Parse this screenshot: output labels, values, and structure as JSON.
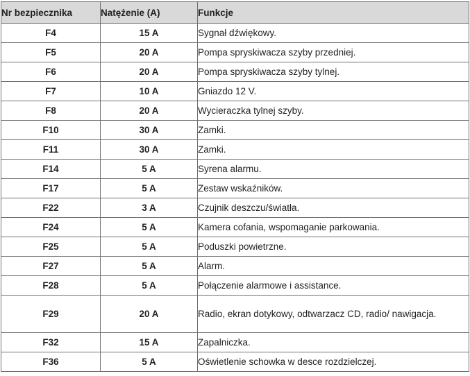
{
  "table": {
    "headers": [
      "Nr bezpiecznika",
      "Natężenie (A)",
      "Funkcje"
    ],
    "rows": [
      {
        "fuse": "F4",
        "amperage": "15 A",
        "function": "Sygnał dźwiękowy."
      },
      {
        "fuse": "F5",
        "amperage": "20 A",
        "function": "Pompa spryskiwacza szyby przedniej."
      },
      {
        "fuse": "F6",
        "amperage": "20 A",
        "function": "Pompa spryskiwacza szyby tylnej."
      },
      {
        "fuse": "F7",
        "amperage": "10 A",
        "function": "Gniazdo 12 V."
      },
      {
        "fuse": "F8",
        "amperage": "20 A",
        "function": "Wycieraczka tylnej szyby."
      },
      {
        "fuse": "F10",
        "amperage": "30 A",
        "function": "Zamki."
      },
      {
        "fuse": "F11",
        "amperage": "30 A",
        "function": "Zamki."
      },
      {
        "fuse": "F14",
        "amperage": "5 A",
        "function": "Syrena alarmu."
      },
      {
        "fuse": "F17",
        "amperage": "5 A",
        "function": "Zestaw wskaźników."
      },
      {
        "fuse": "F22",
        "amperage": "3 A",
        "function": "Czujnik deszczu/światła."
      },
      {
        "fuse": "F24",
        "amperage": "5 A",
        "function": "Kamera cofania, wspomaganie parkowania."
      },
      {
        "fuse": "F25",
        "amperage": "5 A",
        "function": "Poduszki powietrzne."
      },
      {
        "fuse": "F27",
        "amperage": "5 A",
        "function": "Alarm."
      },
      {
        "fuse": "F28",
        "amperage": "5 A",
        "function": "Połączenie alarmowe i assistance."
      },
      {
        "fuse": "F29",
        "amperage": "20 A",
        "function": "Radio, ekran dotykowy, odtwarzacz CD, radio/ nawigacja."
      },
      {
        "fuse": "F32",
        "amperage": "15 A",
        "function": "Zapalniczka."
      },
      {
        "fuse": "F36",
        "amperage": "5 A",
        "function": "Oświetlenie schowka w desce rozdzielczej."
      }
    ]
  }
}
